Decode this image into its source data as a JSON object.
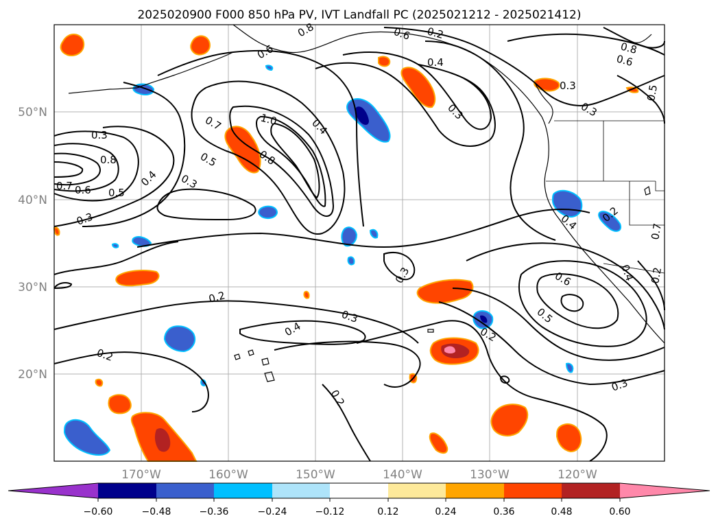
{
  "title": "2025020900 F000 850 hPa PV, IVT Landfall PC (2025021212 - 2025021412)",
  "map": {
    "lat_labels": [
      "50°N",
      "40°N",
      "30°N",
      "20°N"
    ],
    "lon_labels": [
      "170°W",
      "160°W",
      "150°W",
      "140°W",
      "130°W",
      "120°W"
    ]
  },
  "contour_labels": [
    "0.3",
    "0.8",
    "0.5",
    "0.7",
    "0.6",
    "0.4",
    "0.3",
    "0.3",
    "0.7",
    "1.0",
    "0.8",
    "0.4",
    "0.5",
    "0.4",
    "0.3",
    "0.6",
    "0.6",
    "0.4",
    "0.3",
    "0.3",
    "0.8",
    "0.6",
    "0.5",
    "0.2",
    "0.4",
    "0.3",
    "0.2",
    "0.3",
    "0.6",
    "0.5",
    "0.2",
    "0.2",
    "0.4",
    "0.2",
    "0.2",
    "0.3",
    "0.2",
    "0.8",
    "0.7"
  ],
  "colorbar": {
    "ticks": [
      "−0.60",
      "−0.48",
      "−0.36",
      "−0.24",
      "−0.12",
      "0.12",
      "0.24",
      "0.36",
      "0.48",
      "0.60"
    ],
    "colors": [
      "#9932cc",
      "#00008b",
      "#3a5fcd",
      "#00bfff",
      "#aee4fa",
      "#ffffff",
      "#fde99a",
      "#ffa500",
      "#ff4500",
      "#b22222",
      "#ff88aa"
    ]
  }
}
